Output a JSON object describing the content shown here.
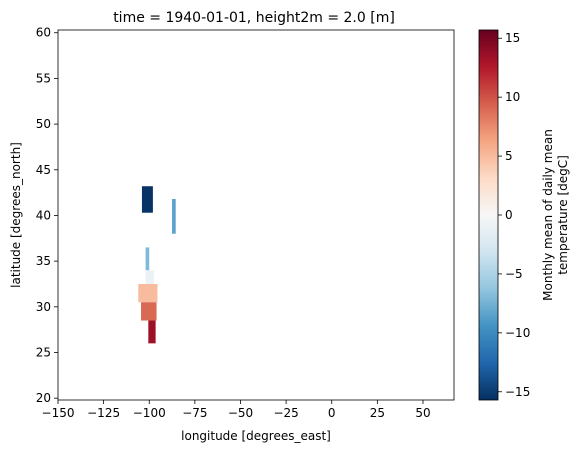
{
  "chart_data": {
    "type": "heatmap",
    "title": "time = 1940-01-01, height2m = 2.0 [m]",
    "xlabel": "longitude [degrees_east]",
    "ylabel": "latitude [degrees_north]",
    "xlim": [
      -150,
      67
    ],
    "ylim": [
      19.8,
      60.3
    ],
    "x_ticks": [
      -150,
      -125,
      -100,
      -75,
      -50,
      -25,
      0,
      25,
      50
    ],
    "x_tick_labels": [
      "−150",
      "−125",
      "−100",
      "−75",
      "−50",
      "−25",
      "0",
      "25",
      "50"
    ],
    "y_ticks": [
      20,
      25,
      30,
      35,
      40,
      45,
      50,
      55,
      60
    ],
    "y_tick_labels": [
      "20",
      "25",
      "30",
      "35",
      "40",
      "45",
      "50",
      "55",
      "60"
    ],
    "colorbar": {
      "label_lines": [
        "Monthly mean of daily mean",
        "temperature [degC]"
      ],
      "vmin": -15.7,
      "vmax": 15.7,
      "colormap": "RdBu_r",
      "ticks": [
        -15,
        -10,
        -5,
        0,
        5,
        10,
        15
      ],
      "tick_labels": [
        "−15",
        "−10",
        "−5",
        "0",
        "5",
        "10",
        "15"
      ]
    },
    "cells": [
      {
        "lon0": -104.0,
        "lon1": -98.0,
        "lat0": 40.3,
        "lat1": 43.2,
        "value": -15.5
      },
      {
        "lon0": -87.5,
        "lon1": -85.5,
        "lat0": 38.0,
        "lat1": 41.8,
        "value": -8.5
      },
      {
        "lon0": -102.0,
        "lon1": -100.0,
        "lat0": 34.0,
        "lat1": 36.5,
        "value": -7.0
      },
      {
        "lon0": -102.0,
        "lon1": -97.5,
        "lat0": 32.5,
        "lat1": 34.0,
        "value": -1.0
      },
      {
        "lon0": -106.0,
        "lon1": -95.5,
        "lat0": 30.5,
        "lat1": 32.5,
        "value": 5.0
      },
      {
        "lon0": -104.5,
        "lon1": -96.0,
        "lat0": 28.5,
        "lat1": 30.5,
        "value": 9.0
      },
      {
        "lon0": -100.5,
        "lon1": -96.5,
        "lat0": 26.0,
        "lat1": 28.5,
        "value": 13.5
      }
    ]
  }
}
